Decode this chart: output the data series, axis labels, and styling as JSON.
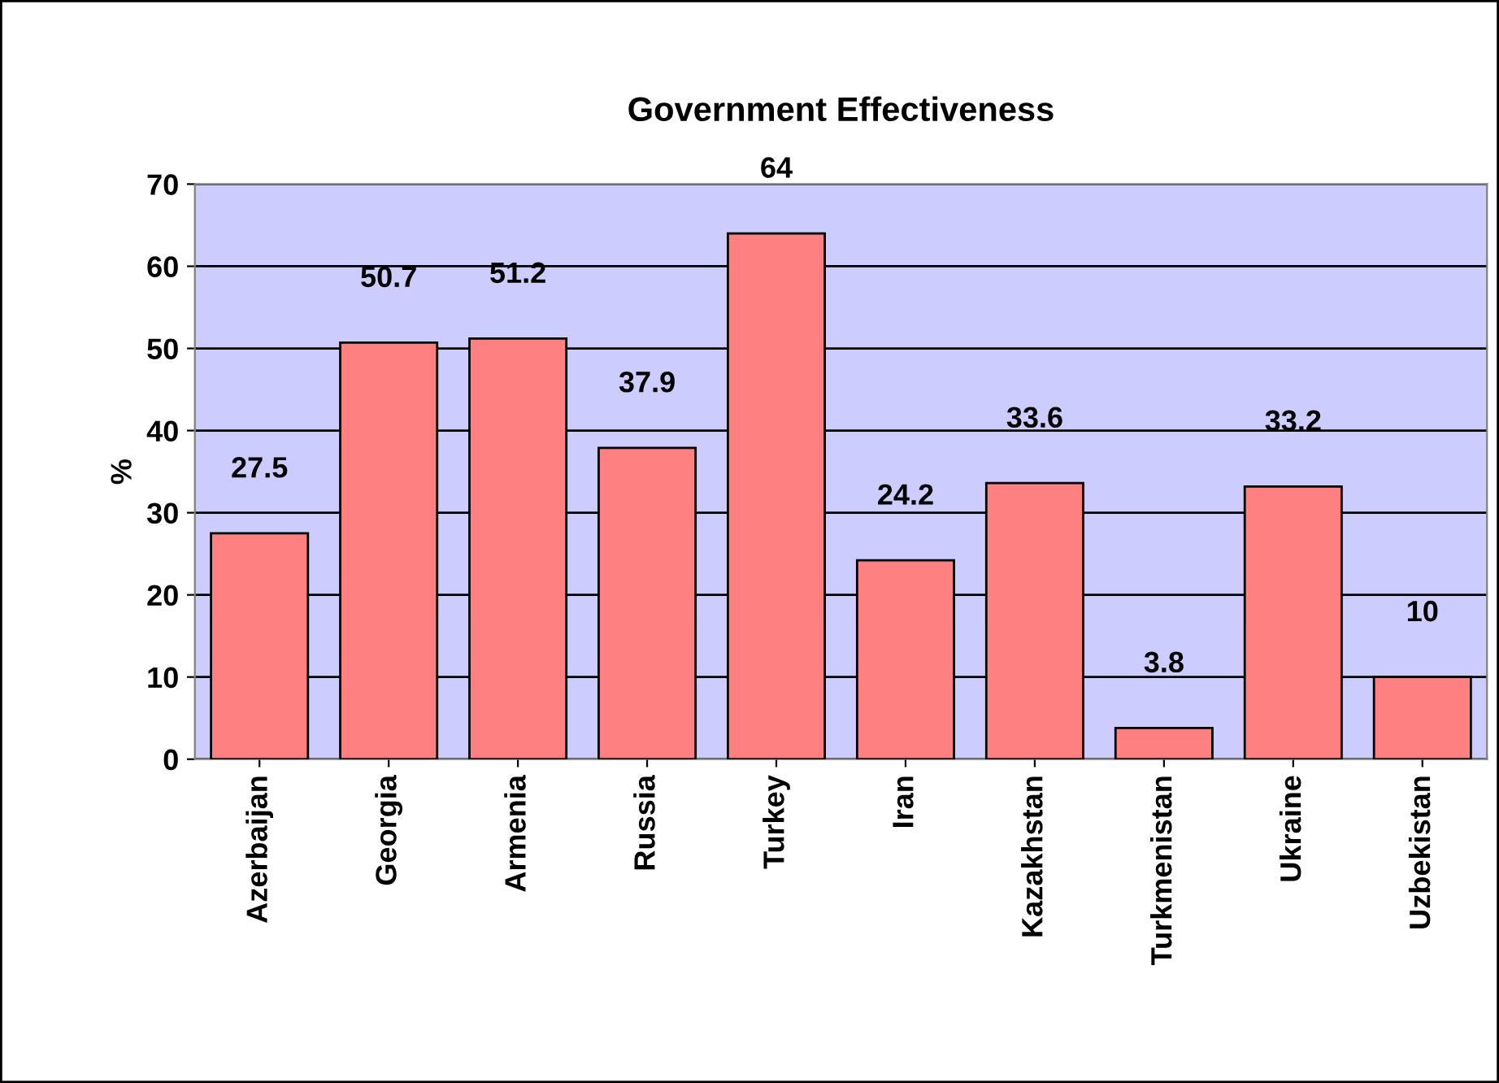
{
  "chart_data": {
    "type": "bar",
    "title": "Government Effectiveness",
    "ylabel": "%",
    "categories": [
      "Azerbaijan",
      "Georgia",
      "Armenia",
      "Russia",
      "Turkey",
      "Iran",
      "Kazakhstan",
      "Turkmenistan",
      "Ukraine",
      "Uzbekistan"
    ],
    "values": [
      27.5,
      50.7,
      51.2,
      37.9,
      64,
      24.2,
      33.6,
      3.8,
      33.2,
      10
    ],
    "color": "#ff8080",
    "ylim": [
      0,
      70
    ],
    "yticks": [
      0,
      10,
      20,
      30,
      40,
      50,
      60,
      70
    ],
    "grid": "y",
    "data_labels": true,
    "legend": false
  }
}
